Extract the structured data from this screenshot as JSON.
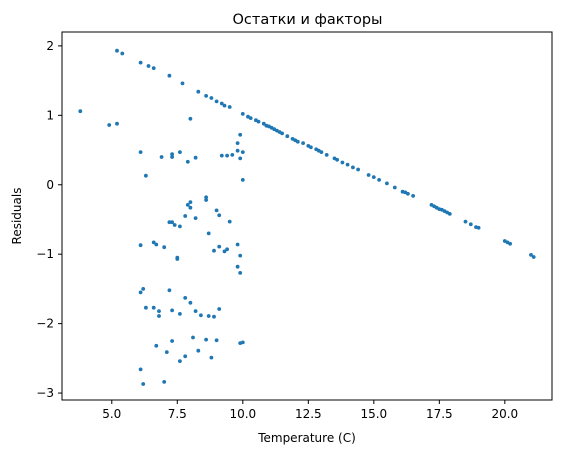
{
  "chart_data": {
    "type": "scatter",
    "title": "Остатки и факторы",
    "xlabel": "Temperature (C)",
    "ylabel": "Residuals",
    "xlim": [
      3.1,
      21.8
    ],
    "ylim": [
      -3.1,
      2.2
    ],
    "xticks": [
      5.0,
      7.5,
      10.0,
      12.5,
      15.0,
      17.5,
      20.0
    ],
    "xtick_labels": [
      "5.0",
      "7.5",
      "10.0",
      "12.5",
      "15.0",
      "17.5",
      "20.0"
    ],
    "yticks": [
      -3,
      -2,
      -1,
      0,
      1,
      2
    ],
    "ytick_labels": [
      "−3",
      "−2",
      "−1",
      "0",
      "1",
      "2"
    ],
    "grid": false,
    "color": "#1f77b4",
    "series": [
      {
        "x": [
          5.2,
          5.4,
          6.1,
          6.4,
          6.6,
          7.2,
          7.7,
          8.3,
          8.6,
          8.8,
          9.0,
          9.2,
          9.3,
          9.5,
          10.0,
          10.2,
          10.3,
          10.5,
          10.6,
          10.8,
          10.9,
          11.0,
          11.1,
          11.2,
          11.3,
          11.4,
          11.5,
          11.7,
          11.9,
          12.0,
          12.1,
          12.3,
          12.5,
          12.6,
          12.8,
          12.9,
          13.0,
          13.2,
          13.5,
          13.6,
          13.8,
          14.0,
          14.2,
          14.4,
          14.8,
          15.0,
          15.2,
          15.5,
          15.8,
          16.1,
          16.2,
          16.3,
          16.5,
          17.2,
          17.3,
          17.4,
          17.5,
          17.6,
          17.7,
          17.8,
          17.9,
          18.5,
          18.7,
          18.9,
          19.0,
          20.0,
          20.1,
          20.2,
          21.0,
          21.1
        ],
        "y": [
          1.93,
          1.89,
          1.76,
          1.71,
          1.68,
          1.57,
          1.46,
          1.34,
          1.28,
          1.25,
          1.2,
          1.17,
          1.14,
          1.12,
          1.02,
          0.98,
          0.96,
          0.93,
          0.91,
          0.88,
          0.85,
          0.84,
          0.82,
          0.8,
          0.78,
          0.76,
          0.74,
          0.7,
          0.66,
          0.64,
          0.62,
          0.6,
          0.56,
          0.54,
          0.51,
          0.49,
          0.47,
          0.43,
          0.38,
          0.36,
          0.32,
          0.29,
          0.25,
          0.22,
          0.14,
          0.11,
          0.07,
          0.02,
          -0.04,
          -0.1,
          -0.11,
          -0.13,
          -0.16,
          -0.29,
          -0.31,
          -0.33,
          -0.35,
          -0.36,
          -0.38,
          -0.4,
          -0.42,
          -0.53,
          -0.57,
          -0.61,
          -0.62,
          -0.81,
          -0.83,
          -0.85,
          -1.01,
          -1.04
        ]
      },
      {
        "x": [
          3.8,
          4.9,
          5.2,
          6.1,
          6.3,
          6.9,
          7.3,
          7.3,
          7.6,
          7.9,
          8.2,
          9.2,
          9.4,
          9.6,
          9.8,
          9.8,
          9.9,
          9.9,
          10.0,
          10.0
        ],
        "y": [
          1.06,
          0.86,
          0.88,
          0.47,
          0.13,
          0.4,
          0.44,
          0.4,
          0.47,
          0.33,
          0.39,
          0.42,
          0.42,
          0.43,
          0.6,
          0.49,
          0.72,
          0.38,
          0.47,
          0.07
        ]
      },
      {
        "x": [
          8.0,
          6.1,
          6.6,
          6.7,
          7.0,
          7.2,
          7.3,
          7.4,
          7.5,
          7.5,
          7.6,
          7.8,
          7.9,
          8.0,
          8.0,
          8.2,
          8.6,
          8.6,
          8.7,
          8.9,
          9.0,
          9.1,
          9.1,
          9.3,
          9.4,
          9.5,
          9.8,
          9.8,
          9.9,
          9.9
        ],
        "y": [
          0.95,
          -0.87,
          -0.83,
          -0.86,
          -0.9,
          -0.54,
          -0.54,
          -0.58,
          -1.07,
          -1.05,
          -0.6,
          -0.45,
          -0.29,
          -0.33,
          -0.25,
          -0.48,
          -0.18,
          -0.22,
          -0.7,
          -0.95,
          -0.37,
          -0.44,
          -0.89,
          -0.96,
          -0.93,
          -0.53,
          -1.18,
          -0.86,
          -1.02,
          -1.27
        ]
      },
      {
        "x": [
          6.1,
          6.2,
          6.3,
          6.6,
          6.8,
          6.8,
          7.2,
          7.3,
          7.6,
          7.8,
          8.0,
          8.2,
          8.4,
          8.7,
          8.9,
          9.1,
          9.9,
          10.0
        ],
        "y": [
          -1.55,
          -1.5,
          -1.77,
          -1.77,
          -1.82,
          -1.89,
          -1.52,
          -1.81,
          -1.86,
          -1.63,
          -1.7,
          -1.82,
          -1.88,
          -1.89,
          -1.9,
          -1.79,
          -2.28,
          -2.27
        ]
      },
      {
        "x": [
          6.1,
          6.2,
          6.7,
          7.0,
          7.1,
          7.3,
          7.6,
          7.8,
          8.1,
          8.3,
          8.6,
          8.8,
          9.0
        ],
        "y": [
          -2.66,
          -2.87,
          -2.32,
          -2.84,
          -2.41,
          -2.25,
          -2.54,
          -2.47,
          -2.2,
          -2.39,
          -2.23,
          -2.49,
          -2.24
        ]
      }
    ]
  }
}
